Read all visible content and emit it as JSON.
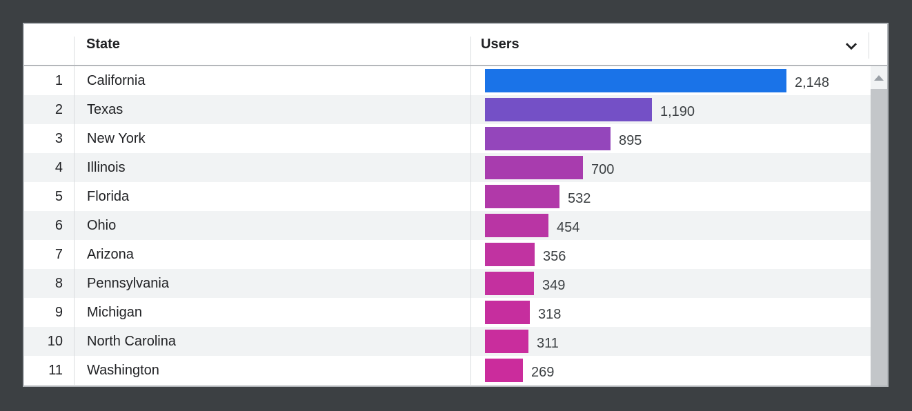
{
  "theme": {
    "outer_bg": "#3c4043",
    "panel_bg": "#ffffff",
    "panel_border": "#b2b6ba",
    "header_divider": "#b4b7bb",
    "column_divider": "#d9dcde",
    "row_stripe": "#f1f3f4",
    "text_primary": "#202124",
    "text_value": "#3c4043",
    "scrollbar_track": "#f1f3f4",
    "scrollbar_thumb": "#c3c6c9",
    "scrollbar_arrow": "#9aa0a6",
    "accent_blue": "#1a73e8",
    "accent_magenta": "#cb2c9c"
  },
  "header": {
    "rank_label": "",
    "state_label": "State",
    "users_label": "Users",
    "sort_icon": "chevron-down-icon"
  },
  "rows": [
    {
      "rank": "1",
      "state": "California",
      "users": "2,148",
      "value": 2148,
      "bar_color": "#1a73e8"
    },
    {
      "rank": "2",
      "state": "Texas",
      "users": "1,190",
      "value": 1190,
      "bar_color": "#7450c6"
    },
    {
      "rank": "3",
      "state": "New York",
      "users": "895",
      "value": 895,
      "bar_color": "#9446bb"
    },
    {
      "rank": "4",
      "state": "Illinois",
      "users": "700",
      "value": 700,
      "bar_color": "#a83cae"
    },
    {
      "rank": "5",
      "state": "Florida",
      "users": "532",
      "value": 532,
      "bar_color": "#b139a9"
    },
    {
      "rank": "6",
      "state": "Ohio",
      "users": "454",
      "value": 454,
      "bar_color": "#b935a4"
    },
    {
      "rank": "7",
      "state": "Arizona",
      "users": "356",
      "value": 356,
      "bar_color": "#c133a1"
    },
    {
      "rank": "8",
      "state": "Pennsylvania",
      "users": "349",
      "value": 349,
      "bar_color": "#c4309f"
    },
    {
      "rank": "9",
      "state": "Michigan",
      "users": "318",
      "value": 318,
      "bar_color": "#c62e9e"
    },
    {
      "rank": "10",
      "state": "North Carolina",
      "users": "311",
      "value": 311,
      "bar_color": "#c92d9d"
    },
    {
      "rank": "11",
      "state": "Washington",
      "users": "269",
      "value": 269,
      "bar_color": "#cb2c9c"
    }
  ],
  "chart_data": {
    "type": "bar",
    "orientation": "horizontal",
    "title": "",
    "xlabel": "Users",
    "ylabel": "State",
    "categories": [
      "California",
      "Texas",
      "New York",
      "Illinois",
      "Florida",
      "Ohio",
      "Arizona",
      "Pennsylvania",
      "Michigan",
      "North Carolina",
      "Washington"
    ],
    "values": [
      2148,
      1190,
      895,
      700,
      532,
      454,
      356,
      349,
      318,
      311,
      269
    ],
    "value_labels": [
      "2,148",
      "1,190",
      "895",
      "700",
      "532",
      "454",
      "356",
      "349",
      "318",
      "311",
      "269"
    ],
    "xlim": [
      0,
      2148
    ],
    "grid": false,
    "legend": "none",
    "bar_colors": [
      "#1a73e8",
      "#7450c6",
      "#9446bb",
      "#a83cae",
      "#b139a9",
      "#b935a4",
      "#c133a1",
      "#c4309f",
      "#c62e9e",
      "#c92d9d",
      "#cb2c9c"
    ]
  }
}
